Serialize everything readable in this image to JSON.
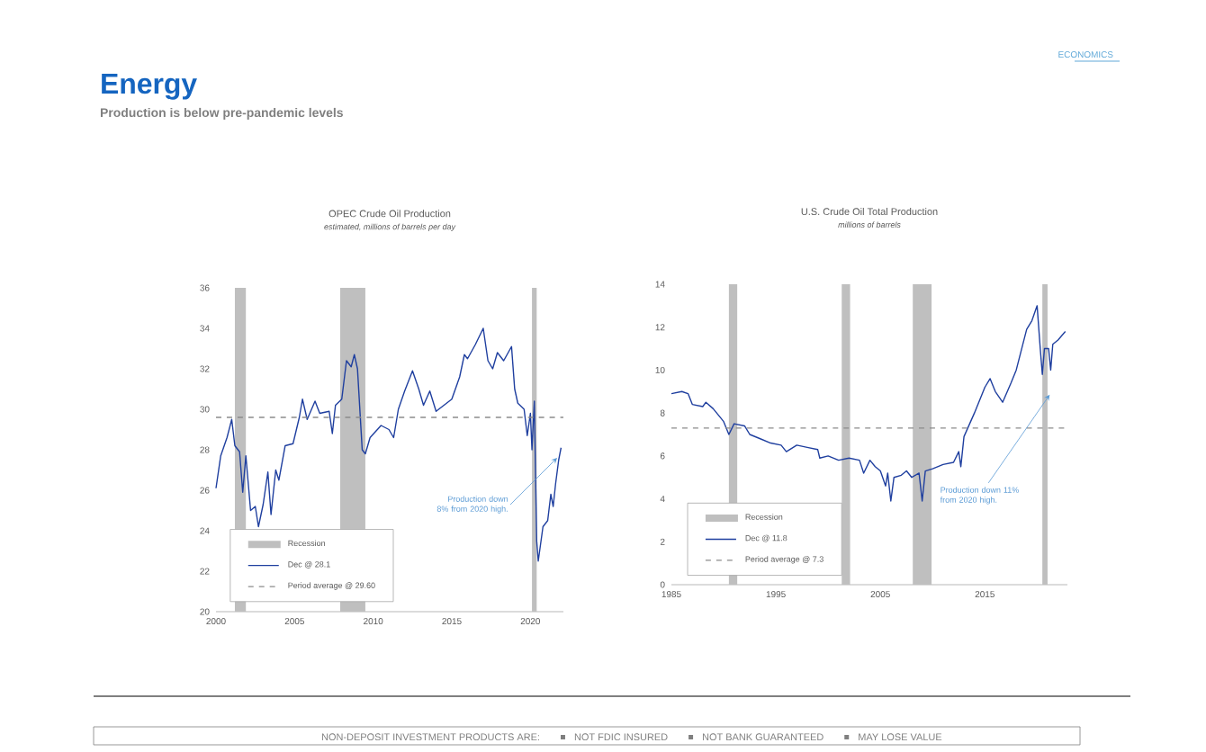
{
  "chart_data": [
    {
      "type": "other",
      "title": "Energy",
      "subtitle": "Production is below pre-pandemic levels",
      "annotations": [
        "ECONOMICS",
        "NON-DEPOSIT INVESTMENT PRODUCTS ARE:",
        "NOT FDIC INSURED",
        "NOT BANK GUARANTEED",
        "MAY LOSE VALUE"
      ]
    },
    {
      "type": "line",
      "title": "OPEC Crude Oil Production",
      "subtitle": "estimated, millions of barrels per day",
      "xlim": [
        2000,
        2022.1
      ],
      "xticks": [
        2000,
        2005,
        2010,
        2015,
        2020
      ],
      "ylim": [
        20,
        36
      ],
      "yticks": [
        20,
        22,
        24,
        26,
        28,
        30,
        32,
        34,
        36
      ],
      "legend": "bottom left",
      "x": [
        2000.0,
        2000.3,
        2000.7,
        2001.0,
        2001.2,
        2001.5,
        2001.7,
        2001.9,
        2002.2,
        2002.5,
        2002.7,
        2003.0,
        2003.3,
        2003.5,
        2003.8,
        2004.0,
        2004.4,
        2004.9,
        2005.3,
        2005.5,
        2005.8,
        2006.3,
        2006.6,
        2007.2,
        2007.4,
        2007.6,
        2008.0,
        2008.3,
        2008.6,
        2008.8,
        2009.0,
        2009.3,
        2009.5,
        2009.8,
        2010.5,
        2011.0,
        2011.3,
        2011.6,
        2012.0,
        2012.5,
        2012.9,
        2013.2,
        2013.6,
        2014.0,
        2014.5,
        2015.0,
        2015.5,
        2015.8,
        2016.0,
        2016.5,
        2017.0,
        2017.3,
        2017.6,
        2017.9,
        2018.3,
        2018.8,
        2019.0,
        2019.2,
        2019.6,
        2019.8,
        2020.0,
        2020.1,
        2020.25,
        2020.4,
        2020.5,
        2020.8,
        2021.1,
        2021.3,
        2021.45,
        2021.6,
        2021.8,
        2021.95
      ],
      "series": [
        {
          "name": "Dec @ 28.1",
          "color": "#1f3f9f",
          "values": [
            26.1,
            27.7,
            28.6,
            29.5,
            28.2,
            27.9,
            25.9,
            27.7,
            25.0,
            25.2,
            24.2,
            25.3,
            26.9,
            24.8,
            27.0,
            26.5,
            28.2,
            28.3,
            29.6,
            30.5,
            29.5,
            30.4,
            29.8,
            29.9,
            28.8,
            30.2,
            30.5,
            32.4,
            32.1,
            32.7,
            32.0,
            28.0,
            27.8,
            28.6,
            29.2,
            29.0,
            28.6,
            30.0,
            30.9,
            31.9,
            31.0,
            30.2,
            30.9,
            29.9,
            30.2,
            30.5,
            31.6,
            32.7,
            32.5,
            33.2,
            34.0,
            32.4,
            32.0,
            32.8,
            32.4,
            33.1,
            31.0,
            30.3,
            30.0,
            28.7,
            29.8,
            28.0,
            30.4,
            23.5,
            22.5,
            24.2,
            24.5,
            25.8,
            25.2,
            26.3,
            27.5,
            28.1
          ]
        }
      ],
      "bands": [
        {
          "axis": "x",
          "from": 2001.2,
          "to": 2001.9,
          "label": "Recession",
          "color": "#bfbfbf"
        },
        {
          "axis": "x",
          "from": 2007.9,
          "to": 2009.5,
          "color": "#bfbfbf"
        },
        {
          "axis": "x",
          "from": 2020.1,
          "to": 2020.4,
          "color": "#bfbfbf"
        }
      ],
      "ref_lines": [
        {
          "axis": "y",
          "value": 29.6,
          "label": "Period average @ 29.60",
          "color": "#8c8c8c",
          "line_style": "dashed"
        }
      ],
      "annotations": [
        {
          "text": "Production down 8% from 2020 high.",
          "x": 2021.7,
          "y": 27.6
        }
      ]
    },
    {
      "type": "line",
      "title": "U.S. Crude Oil Total Production",
      "subtitle": "millions of barrels",
      "xlim": [
        1985,
        2022.9
      ],
      "xticks": [
        1985,
        1995,
        2005,
        2015
      ],
      "ylim": [
        0,
        14
      ],
      "yticks": [
        0,
        2,
        4,
        6,
        8,
        10,
        12,
        14
      ],
      "legend": "bottom left",
      "x": [
        1985.0,
        1986.0,
        1986.6,
        1987.0,
        1988.0,
        1988.3,
        1989.0,
        1990.0,
        1990.5,
        1991.0,
        1992.0,
        1992.5,
        1993.5,
        1994.5,
        1995.5,
        1996.0,
        1997.0,
        1998.0,
        1999.0,
        1999.2,
        2000.0,
        2001.0,
        2002.0,
        2003.0,
        2003.4,
        2004.0,
        2004.5,
        2005.0,
        2005.5,
        2005.7,
        2006.0,
        2006.3,
        2007.0,
        2007.5,
        2008.0,
        2008.7,
        2009.0,
        2009.3,
        2010.0,
        2011.0,
        2012.0,
        2012.5,
        2012.7,
        2013.0,
        2014.0,
        2015.0,
        2015.5,
        2016.0,
        2016.7,
        2017.5,
        2018.0,
        2019.0,
        2019.5,
        2020.0,
        2020.3,
        2020.5,
        2020.7,
        2021.1,
        2021.3,
        2021.5,
        2022.0,
        2022.7
      ],
      "series": [
        {
          "name": "Dec @ 11.8",
          "color": "#1f3f9f",
          "values": [
            8.9,
            9.0,
            8.9,
            8.4,
            8.3,
            8.5,
            8.2,
            7.6,
            7.0,
            7.5,
            7.4,
            7.0,
            6.8,
            6.6,
            6.5,
            6.2,
            6.5,
            6.4,
            6.3,
            5.9,
            6.0,
            5.8,
            5.9,
            5.8,
            5.2,
            5.8,
            5.5,
            5.3,
            4.6,
            5.2,
            3.9,
            5.0,
            5.1,
            5.3,
            5.0,
            5.2,
            3.9,
            5.3,
            5.4,
            5.6,
            5.7,
            6.2,
            5.5,
            6.9,
            8.0,
            9.2,
            9.6,
            9.0,
            8.5,
            9.4,
            10.0,
            11.9,
            12.3,
            13.0,
            11.0,
            9.8,
            11.0,
            11.0,
            10.0,
            11.2,
            11.4,
            11.8
          ]
        }
      ],
      "bands": [
        {
          "axis": "x",
          "from": 1990.5,
          "to": 1991.3,
          "label": "Recession",
          "color": "#bfbfbf"
        },
        {
          "axis": "x",
          "from": 2001.3,
          "to": 2002.1,
          "color": "#bfbfbf"
        },
        {
          "axis": "x",
          "from": 2008.1,
          "to": 2009.9,
          "color": "#bfbfbf"
        },
        {
          "axis": "x",
          "from": 2020.5,
          "to": 2021.0,
          "color": "#bfbfbf"
        }
      ],
      "ref_lines": [
        {
          "axis": "y",
          "value": 7.3,
          "label": "Period average @ 7.3",
          "color": "#8c8c8c",
          "line_style": "dashed"
        }
      ],
      "annotations": [
        {
          "text": "Production down 11% from 2020 high.",
          "x": 2021.2,
          "y": 8.85
        }
      ]
    }
  ]
}
